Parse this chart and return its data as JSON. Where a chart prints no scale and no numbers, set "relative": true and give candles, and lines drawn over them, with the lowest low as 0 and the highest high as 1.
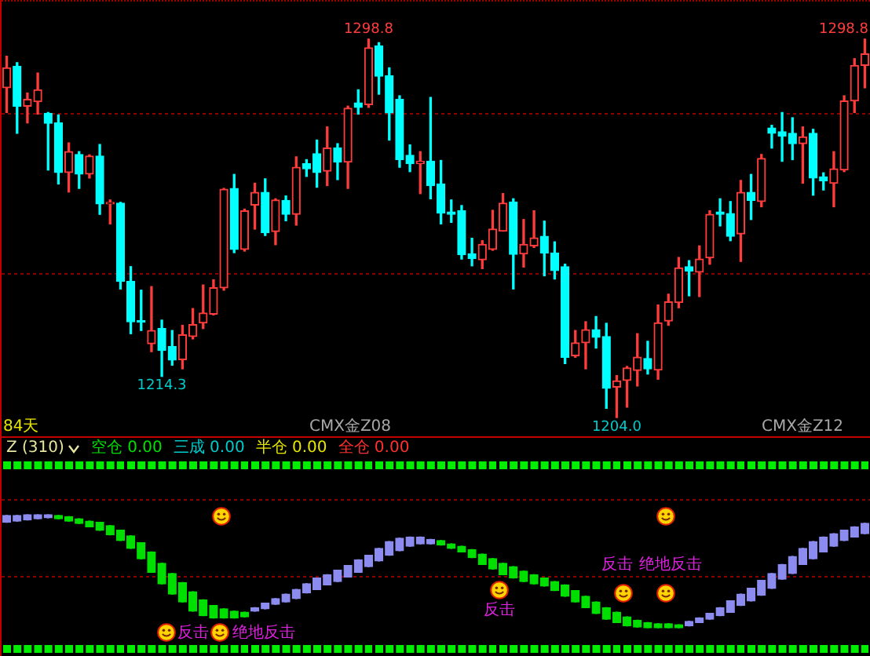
{
  "chart_data": [
    {
      "type": "candlestick",
      "categories": [
        null,
        null,
        null,
        null,
        null,
        null,
        null,
        null,
        null,
        null,
        null,
        null,
        null,
        null,
        null,
        null,
        null,
        null,
        null,
        null,
        null,
        null,
        null,
        null,
        null,
        null,
        null,
        null,
        null,
        null,
        null,
        null,
        null,
        null,
        null,
        null,
        null,
        null,
        null,
        null,
        null,
        null,
        null,
        null,
        null,
        null,
        null,
        null,
        null,
        null,
        null,
        null,
        null,
        null,
        null,
        null,
        null,
        null,
        null,
        null,
        null,
        null,
        null,
        null,
        null,
        null,
        null,
        null,
        null,
        null,
        null,
        null,
        null,
        null,
        null,
        null,
        null,
        null,
        null,
        null,
        null,
        null,
        null,
        null
      ],
      "ohlc": [
        [
          1286.6,
          1294.5,
          1280.4,
          1291.6
        ],
        [
          1292.0,
          1292.9,
          1275.2,
          1282.0
        ],
        [
          1282.0,
          1285.3,
          1277.8,
          1283.7
        ],
        [
          1283.1,
          1290.3,
          1280.0,
          1286.1
        ],
        [
          1280.2,
          1280.4,
          1266.0,
          1277.7
        ],
        [
          1277.8,
          1279.8,
          1262.5,
          1265.4
        ],
        [
          1265.4,
          1272.8,
          1260.5,
          1270.6
        ],
        [
          1269.9,
          1270.6,
          1261.4,
          1265.0
        ],
        [
          1265.0,
          1269.8,
          1264.0,
          1269.5
        ],
        [
          1269.5,
          1272.4,
          1254.9,
          1257.5
        ],
        [
          1257.5,
          1258.5,
          1252.5,
          1257.7
        ],
        [
          1257.7,
          1257.9,
          1236.2,
          1238.1
        ],
        [
          1238.1,
          1241.8,
          1225.0,
          1228.0
        ],
        [
          1228.2,
          1235.9,
          1225.8,
          1227.9
        ],
        [
          1222.5,
          1236.8,
          1220.5,
          1225.8
        ],
        [
          1226.3,
          1228.4,
          1214.3,
          1220.8
        ],
        [
          1221.8,
          1225.8,
          1217.1,
          1218.4
        ],
        [
          1218.5,
          1227.1,
          1216.2,
          1224.7
        ],
        [
          1224.3,
          1231.3,
          1223.7,
          1227.3
        ],
        [
          1227.7,
          1237.2,
          1226.3,
          1230.2
        ],
        [
          1229.9,
          1238.5,
          1229.7,
          1236.5
        ],
        [
          1236.5,
          1261.4,
          1235.9,
          1261.2
        ],
        [
          1261.4,
          1264.9,
          1245.3,
          1246.1
        ],
        [
          1246.1,
          1256.2,
          1245.7,
          1255.8
        ],
        [
          1257.2,
          1262.7,
          1251.2,
          1260.4
        ],
        [
          1260.4,
          1263.8,
          1249.6,
          1250.3
        ],
        [
          1250.6,
          1258.8,
          1247.3,
          1258.5
        ],
        [
          1258.4,
          1259.5,
          1253.3,
          1254.9
        ],
        [
          1254.9,
          1269.3,
          1252.2,
          1266.7
        ],
        [
          1267.6,
          1268.6,
          1264.4,
          1266.3
        ],
        [
          1270.1,
          1273.5,
          1261.7,
          1265.4
        ],
        [
          1265.7,
          1276.8,
          1262.1,
          1271.5
        ],
        [
          1271.5,
          1272.6,
          1263.6,
          1268.0
        ],
        [
          1268.0,
          1282.0,
          1261.4,
          1281.5
        ],
        [
          1282.8,
          1286.1,
          1280.0,
          1281.7
        ],
        [
          1282.4,
          1298.8,
          1281.7,
          1296.6
        ],
        [
          1297.1,
          1297.9,
          1285.0,
          1289.5
        ],
        [
          1289.6,
          1291.6,
          1273.5,
          1280.3
        ],
        [
          1283.7,
          1284.6,
          1266.7,
          1268.6
        ],
        [
          1269.7,
          1272.3,
          1265.6,
          1267.6
        ],
        [
          1267.6,
          1270.6,
          1260.1,
          1268.2
        ],
        [
          1268.2,
          1284.2,
          1258.8,
          1262.1
        ],
        [
          1262.5,
          1268.4,
          1252.5,
          1255.2
        ],
        [
          1255.5,
          1258.5,
          1252.9,
          1254.9
        ],
        [
          1255.8,
          1257.1,
          1243.7,
          1244.8
        ],
        [
          1245.0,
          1248.9,
          1242.0,
          1243.8
        ],
        [
          1243.5,
          1248.3,
          1241.3,
          1247.4
        ],
        [
          1246.1,
          1255.9,
          1245.9,
          1251.2
        ],
        [
          1250.7,
          1260.1,
          1250.7,
          1257.7
        ],
        [
          1258.0,
          1258.8,
          1236.2,
          1244.9
        ],
        [
          1245.0,
          1253.6,
          1241.7,
          1247.4
        ],
        [
          1247.0,
          1255.8,
          1246.6,
          1249.0
        ],
        [
          1249.4,
          1253.2,
          1239.5,
          1245.2
        ],
        [
          1245.2,
          1248.0,
          1238.7,
          1240.8
        ],
        [
          1241.8,
          1242.4,
          1217.5,
          1219.1
        ],
        [
          1219.5,
          1225.8,
          1219.1,
          1222.7
        ],
        [
          1222.7,
          1228.0,
          1216.2,
          1226.0
        ],
        [
          1226.0,
          1229.3,
          1221.4,
          1224.1
        ],
        [
          1224.3,
          1227.6,
          1206.3,
          1211.3
        ],
        [
          1211.6,
          1214.5,
          1204.0,
          1213.2
        ],
        [
          1213.3,
          1216.8,
          1206.6,
          1216.4
        ],
        [
          1215.8,
          1225.0,
          1211.9,
          1219.1
        ],
        [
          1218.8,
          1223.1,
          1214.9,
          1216.2
        ],
        [
          1215.9,
          1232.2,
          1213.6,
          1227.7
        ],
        [
          1228.2,
          1234.9,
          1227.1,
          1233.0
        ],
        [
          1232.8,
          1244.1,
          1231.5,
          1241.5
        ],
        [
          1241.8,
          1243.3,
          1234.5,
          1240.7
        ],
        [
          1240.4,
          1247.0,
          1234.3,
          1243.7
        ],
        [
          1244.0,
          1255.8,
          1242.4,
          1254.9
        ],
        [
          1255.5,
          1258.8,
          1252.0,
          1254.9
        ],
        [
          1255.1,
          1258.1,
          1248.3,
          1249.4
        ],
        [
          1250.0,
          1263.4,
          1243.1,
          1260.4
        ],
        [
          1260.4,
          1264.9,
          1253.6,
          1258.4
        ],
        [
          1258.1,
          1269.9,
          1256.8,
          1268.9
        ],
        [
          1276.5,
          1277.2,
          1271.5,
          1275.2
        ],
        [
          1275.6,
          1280.4,
          1268.2,
          1274.5
        ],
        [
          1275.2,
          1279.1,
          1268.6,
          1272.6
        ],
        [
          1272.6,
          1276.8,
          1262.7,
          1274.3
        ],
        [
          1275.2,
          1276.2,
          1259.7,
          1264.0
        ],
        [
          1264.3,
          1265.3,
          1261.0,
          1263.3
        ],
        [
          1262.7,
          1270.6,
          1256.8,
          1266.3
        ],
        [
          1266.0,
          1284.6,
          1265.6,
          1283.3
        ],
        [
          1283.3,
          1293.9,
          1280.4,
          1292.2
        ],
        [
          1292.2,
          1298.8,
          1286.6,
          1295.1
        ]
      ],
      "colors": [
        "#ff3c3c",
        "#00ffff",
        "#ff3c3c",
        "#ff3c3c",
        "#00ffff",
        "#00ffff",
        "#ff3c3c",
        "#00ffff",
        "#ff3c3c",
        "#00ffff",
        "#ff3c3c",
        "#00ffff",
        "#00ffff",
        "#00ffff",
        "#ff3c3c",
        "#00ffff",
        "#00ffff",
        "#ff3c3c",
        "#ff3c3c",
        "#ff3c3c",
        "#ff3c3c",
        "#ff3c3c",
        "#00ffff",
        "#ff3c3c",
        "#ff3c3c",
        "#00ffff",
        "#ff3c3c",
        "#00ffff",
        "#ff3c3c",
        "#00ffff",
        "#00ffff",
        "#ff3c3c",
        "#00ffff",
        "#ff3c3c",
        "#00ffff",
        "#ff3c3c",
        "#00ffff",
        "#00ffff",
        "#00ffff",
        "#00ffff",
        "#ff3c3c",
        "#00ffff",
        "#00ffff",
        "#00ffff",
        "#00ffff",
        "#00ffff",
        "#ff3c3c",
        "#ff3c3c",
        "#ff3c3c",
        "#00ffff",
        "#ff3c3c",
        "#ff3c3c",
        "#00ffff",
        "#00ffff",
        "#00ffff",
        "#ff3c3c",
        "#ff3c3c",
        "#00ffff",
        "#00ffff",
        "#ff3c3c",
        "#ff3c3c",
        "#ff3c3c",
        "#00ffff",
        "#ff3c3c",
        "#ff3c3c",
        "#ff3c3c",
        "#00ffff",
        "#ff3c3c",
        "#ff3c3c",
        "#00ffff",
        "#00ffff",
        "#ff3c3c",
        "#00ffff",
        "#ff3c3c",
        "#00ffff",
        "#00ffff",
        "#00ffff",
        "#ff3c3c",
        "#00ffff",
        "#00ffff",
        "#ff3c3c",
        "#ff3c3c",
        "#ff3c3c",
        "#ff3c3c"
      ],
      "ylim": [
        1199.3,
        1308.2
      ],
      "yticks": [
        {
          "value": 1280,
          "label": null
        },
        {
          "value": 1240,
          "label": null
        }
      ],
      "grid": "y",
      "tick_labels": false,
      "annotations": [
        "1298.8",
        {
          "text": "1214.3",
          "y": 1214.3
        },
        {
          "text": "1204.0",
          "y": 1204.0
        },
        "1298.8",
        "84天",
        "CMX金Z08",
        "CMX金Z12"
      ]
    },
    {
      "type": "candlestick",
      "title": "Z (310)",
      "relative": true,
      "tick_labels": false,
      "categories": [
        null,
        null,
        null,
        null,
        null,
        null,
        null,
        null,
        null,
        null,
        null,
        null,
        null,
        null,
        null,
        null,
        null,
        null,
        null,
        null,
        null,
        null,
        null,
        null,
        null,
        null,
        null,
        null,
        null,
        null,
        null,
        null,
        null,
        null,
        null,
        null,
        null,
        null,
        null,
        null,
        null,
        null,
        null,
        null,
        null,
        null,
        null,
        null,
        null,
        null,
        null,
        null,
        null,
        null,
        null,
        null,
        null,
        null,
        null,
        null,
        null,
        null,
        null,
        null,
        null,
        null,
        null,
        null,
        null,
        null,
        null,
        null,
        null,
        null,
        null,
        null,
        null,
        null,
        null,
        null,
        null,
        null,
        null,
        null
      ],
      "ohlc": [
        [
          0.93,
          0.99,
          0.93,
          0.99
        ],
        [
          0.94,
          0.99,
          0.94,
          0.99
        ],
        [
          0.95,
          1.0,
          0.95,
          1.0
        ],
        [
          0.96,
          1.0,
          0.96,
          1.0
        ],
        [
          0.97,
          1.0,
          0.97,
          1.0
        ],
        [
          0.99,
          0.99,
          0.96,
          0.96
        ],
        [
          0.98,
          0.98,
          0.94,
          0.94
        ],
        [
          0.96,
          0.96,
          0.92,
          0.92
        ],
        [
          0.94,
          0.94,
          0.89,
          0.89
        ],
        [
          0.93,
          0.93,
          0.86,
          0.86
        ],
        [
          0.9,
          0.9,
          0.82,
          0.82
        ],
        [
          0.86,
          0.86,
          0.77,
          0.77
        ],
        [
          0.81,
          0.81,
          0.7,
          0.7
        ],
        [
          0.75,
          0.75,
          0.61,
          0.61
        ],
        [
          0.67,
          0.67,
          0.49,
          0.49
        ],
        [
          0.57,
          0.57,
          0.39,
          0.39
        ],
        [
          0.48,
          0.48,
          0.3,
          0.3
        ],
        [
          0.4,
          0.4,
          0.23,
          0.23
        ],
        [
          0.32,
          0.32,
          0.15,
          0.15
        ],
        [
          0.25,
          0.25,
          0.11,
          0.11
        ],
        [
          0.2,
          0.2,
          0.09,
          0.09
        ],
        [
          0.17,
          0.17,
          0.09,
          0.09
        ],
        [
          0.15,
          0.15,
          0.09,
          0.09
        ],
        [
          0.14,
          0.14,
          0.1,
          0.1
        ],
        [
          0.15,
          0.18,
          0.15,
          0.18
        ],
        [
          0.17,
          0.22,
          0.17,
          0.22
        ],
        [
          0.21,
          0.26,
          0.21,
          0.26
        ],
        [
          0.23,
          0.3,
          0.23,
          0.3
        ],
        [
          0.26,
          0.34,
          0.26,
          0.34
        ],
        [
          0.31,
          0.39,
          0.31,
          0.39
        ],
        [
          0.34,
          0.44,
          0.34,
          0.44
        ],
        [
          0.38,
          0.47,
          0.38,
          0.47
        ],
        [
          0.41,
          0.51,
          0.41,
          0.51
        ],
        [
          0.45,
          0.55,
          0.45,
          0.55
        ],
        [
          0.49,
          0.6,
          0.49,
          0.6
        ],
        [
          0.54,
          0.64,
          0.54,
          0.64
        ],
        [
          0.59,
          0.7,
          0.59,
          0.7
        ],
        [
          0.64,
          0.76,
          0.64,
          0.76
        ],
        [
          0.68,
          0.79,
          0.68,
          0.79
        ],
        [
          0.72,
          0.8,
          0.72,
          0.8
        ],
        [
          0.74,
          0.8,
          0.74,
          0.8
        ],
        [
          0.74,
          0.78,
          0.74,
          0.78
        ],
        [
          0.77,
          0.77,
          0.73,
          0.73
        ],
        [
          0.74,
          0.74,
          0.7,
          0.7
        ],
        [
          0.72,
          0.72,
          0.67,
          0.67
        ],
        [
          0.69,
          0.69,
          0.62,
          0.62
        ],
        [
          0.65,
          0.65,
          0.56,
          0.56
        ],
        [
          0.61,
          0.61,
          0.52,
          0.52
        ],
        [
          0.57,
          0.57,
          0.47,
          0.47
        ],
        [
          0.54,
          0.54,
          0.44,
          0.44
        ],
        [
          0.5,
          0.5,
          0.41,
          0.41
        ],
        [
          0.47,
          0.47,
          0.39,
          0.39
        ],
        [
          0.44,
          0.44,
          0.37,
          0.37
        ],
        [
          0.41,
          0.41,
          0.33,
          0.33
        ],
        [
          0.38,
          0.38,
          0.28,
          0.28
        ],
        [
          0.33,
          0.33,
          0.23,
          0.23
        ],
        [
          0.28,
          0.28,
          0.18,
          0.18
        ],
        [
          0.23,
          0.23,
          0.13,
          0.13
        ],
        [
          0.18,
          0.18,
          0.08,
          0.08
        ],
        [
          0.14,
          0.14,
          0.05,
          0.05
        ],
        [
          0.1,
          0.1,
          0.02,
          0.02
        ],
        [
          0.07,
          0.07,
          0.01,
          0.01
        ],
        [
          0.05,
          0.05,
          0,
          0
        ],
        [
          0.04,
          0.04,
          0,
          0
        ],
        [
          0.04,
          0.04,
          0,
          0
        ],
        [
          0.03,
          0.03,
          0,
          0
        ],
        [
          0.02,
          0.06,
          0.02,
          0.06
        ],
        [
          0.05,
          0.09,
          0.05,
          0.09
        ],
        [
          0.08,
          0.13,
          0.08,
          0.13
        ],
        [
          0.11,
          0.18,
          0.11,
          0.18
        ],
        [
          0.14,
          0.24,
          0.14,
          0.24
        ],
        [
          0.2,
          0.3,
          0.2,
          0.3
        ],
        [
          0.24,
          0.35,
          0.24,
          0.35
        ],
        [
          0.29,
          0.42,
          0.29,
          0.42
        ],
        [
          0.35,
          0.48,
          0.35,
          0.48
        ],
        [
          0.43,
          0.56,
          0.43,
          0.56
        ],
        [
          0.48,
          0.63,
          0.48,
          0.63
        ],
        [
          0.56,
          0.7,
          0.56,
          0.7
        ],
        [
          0.61,
          0.76,
          0.61,
          0.76
        ],
        [
          0.67,
          0.8,
          0.67,
          0.8
        ],
        [
          0.72,
          0.83,
          0.72,
          0.83
        ],
        [
          0.77,
          0.86,
          0.77,
          0.86
        ],
        [
          0.8,
          0.89,
          0.8,
          0.89
        ],
        [
          0.83,
          0.92,
          0.83,
          0.92
        ]
      ],
      "colors": [
        "#8c8cf0",
        "#8c8cf0",
        "#8c8cf0",
        "#8c8cf0",
        "#8c8cf0",
        "#00e000",
        "#00e000",
        "#00e000",
        "#00e000",
        "#00e000",
        "#00e000",
        "#00e000",
        "#00e000",
        "#00e000",
        "#00e000",
        "#00e000",
        "#00e000",
        "#00e000",
        "#00e000",
        "#00e000",
        "#00e000",
        "#00e000",
        "#00e000",
        "#00e000",
        "#8c8cf0",
        "#8c8cf0",
        "#8c8cf0",
        "#8c8cf0",
        "#8c8cf0",
        "#8c8cf0",
        "#8c8cf0",
        "#8c8cf0",
        "#8c8cf0",
        "#8c8cf0",
        "#8c8cf0",
        "#8c8cf0",
        "#8c8cf0",
        "#8c8cf0",
        "#8c8cf0",
        "#8c8cf0",
        "#8c8cf0",
        "#8c8cf0",
        "#00e000",
        "#00e000",
        "#00e000",
        "#00e000",
        "#00e000",
        "#00e000",
        "#00e000",
        "#00e000",
        "#00e000",
        "#00e000",
        "#00e000",
        "#00e000",
        "#00e000",
        "#00e000",
        "#00e000",
        "#00e000",
        "#00e000",
        "#00e000",
        "#00e000",
        "#00e000",
        "#00e000",
        "#00e000",
        "#00e000",
        "#00e000",
        "#8c8cf0",
        "#8c8cf0",
        "#8c8cf0",
        "#8c8cf0",
        "#8c8cf0",
        "#8c8cf0",
        "#8c8cf0",
        "#8c8cf0",
        "#8c8cf0",
        "#8c8cf0",
        "#8c8cf0",
        "#8c8cf0",
        "#8c8cf0",
        "#8c8cf0",
        "#8c8cf0",
        "#8c8cf0",
        "#8c8cf0",
        "#8c8cf0"
      ],
      "ref_lines": [
        {
          "axis": "y",
          "value": 1.13,
          "color": "#8b0000",
          "line_style": "dotted"
        },
        {
          "axis": "y",
          "value": 0.46,
          "color": "#8b0000",
          "line_style": "dotted"
        }
      ],
      "annotations": [
        "空仓 0.00",
        "三成 0.00",
        "半仓 0.00",
        "全仓 0.00",
        "反击",
        "绝地反击",
        "反击",
        "反击",
        "绝地反击"
      ]
    }
  ]
}
